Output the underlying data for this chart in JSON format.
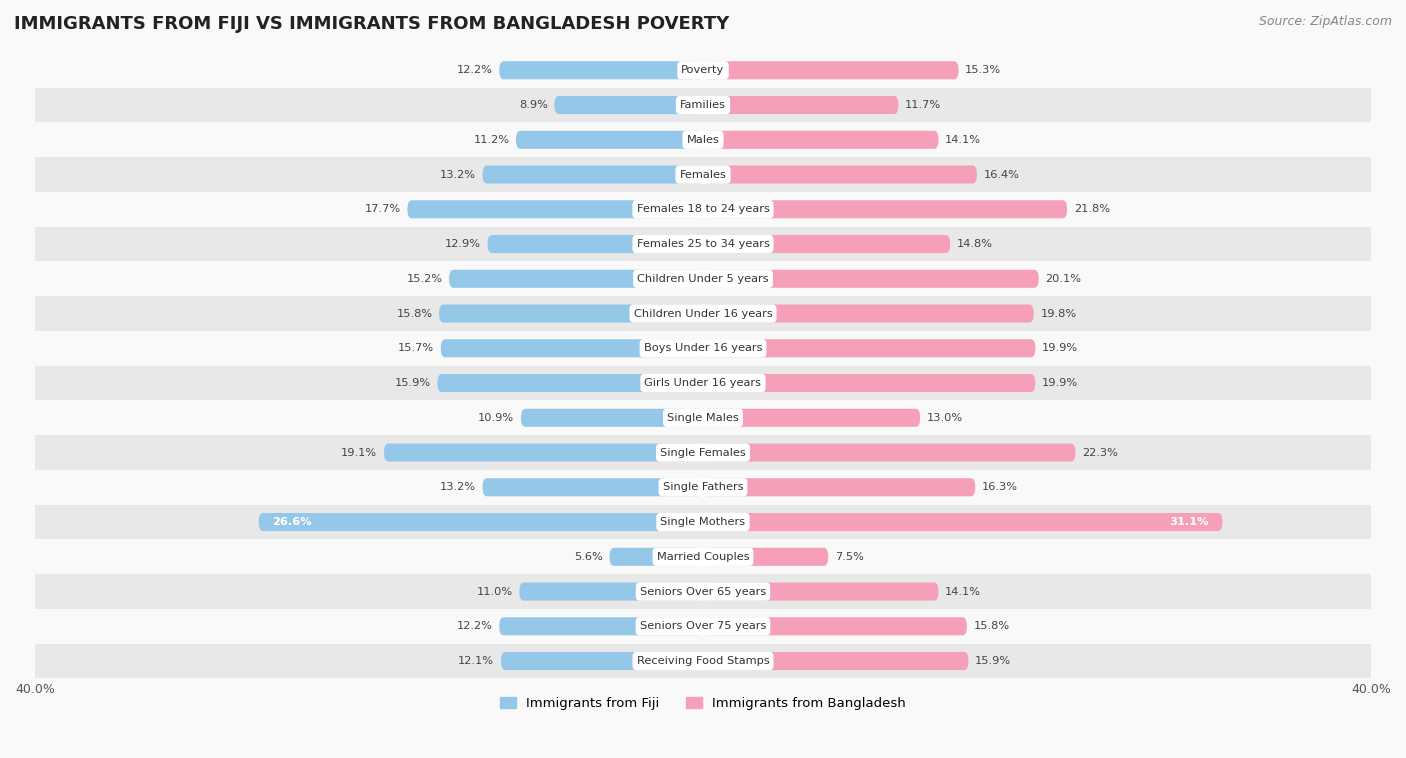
{
  "title": "IMMIGRANTS FROM FIJI VS IMMIGRANTS FROM BANGLADESH POVERTY",
  "source": "Source: ZipAtlas.com",
  "categories": [
    "Poverty",
    "Families",
    "Males",
    "Females",
    "Females 18 to 24 years",
    "Females 25 to 34 years",
    "Children Under 5 years",
    "Children Under 16 years",
    "Boys Under 16 years",
    "Girls Under 16 years",
    "Single Males",
    "Single Females",
    "Single Fathers",
    "Single Mothers",
    "Married Couples",
    "Seniors Over 65 years",
    "Seniors Over 75 years",
    "Receiving Food Stamps"
  ],
  "fiji_values": [
    12.2,
    8.9,
    11.2,
    13.2,
    17.7,
    12.9,
    15.2,
    15.8,
    15.7,
    15.9,
    10.9,
    19.1,
    13.2,
    26.6,
    5.6,
    11.0,
    12.2,
    12.1
  ],
  "bangladesh_values": [
    15.3,
    11.7,
    14.1,
    16.4,
    21.8,
    14.8,
    20.1,
    19.8,
    19.9,
    19.9,
    13.0,
    22.3,
    16.3,
    31.1,
    7.5,
    14.1,
    15.8,
    15.9
  ],
  "fiji_color": "#95C8E8",
  "bangladesh_color": "#F5A0B8",
  "fiji_label": "Immigrants from Fiji",
  "bangladesh_label": "Immigrants from Bangladesh",
  "axis_limit": 40.0,
  "bar_height": 0.52,
  "background_color": "#f9f9f9",
  "row_alt_color": "#e8e8e8",
  "row_main_color": "#f9f9f9",
  "title_fontsize": 13,
  "source_fontsize": 9,
  "label_fontsize": 8.2,
  "value_fontsize": 8.2
}
